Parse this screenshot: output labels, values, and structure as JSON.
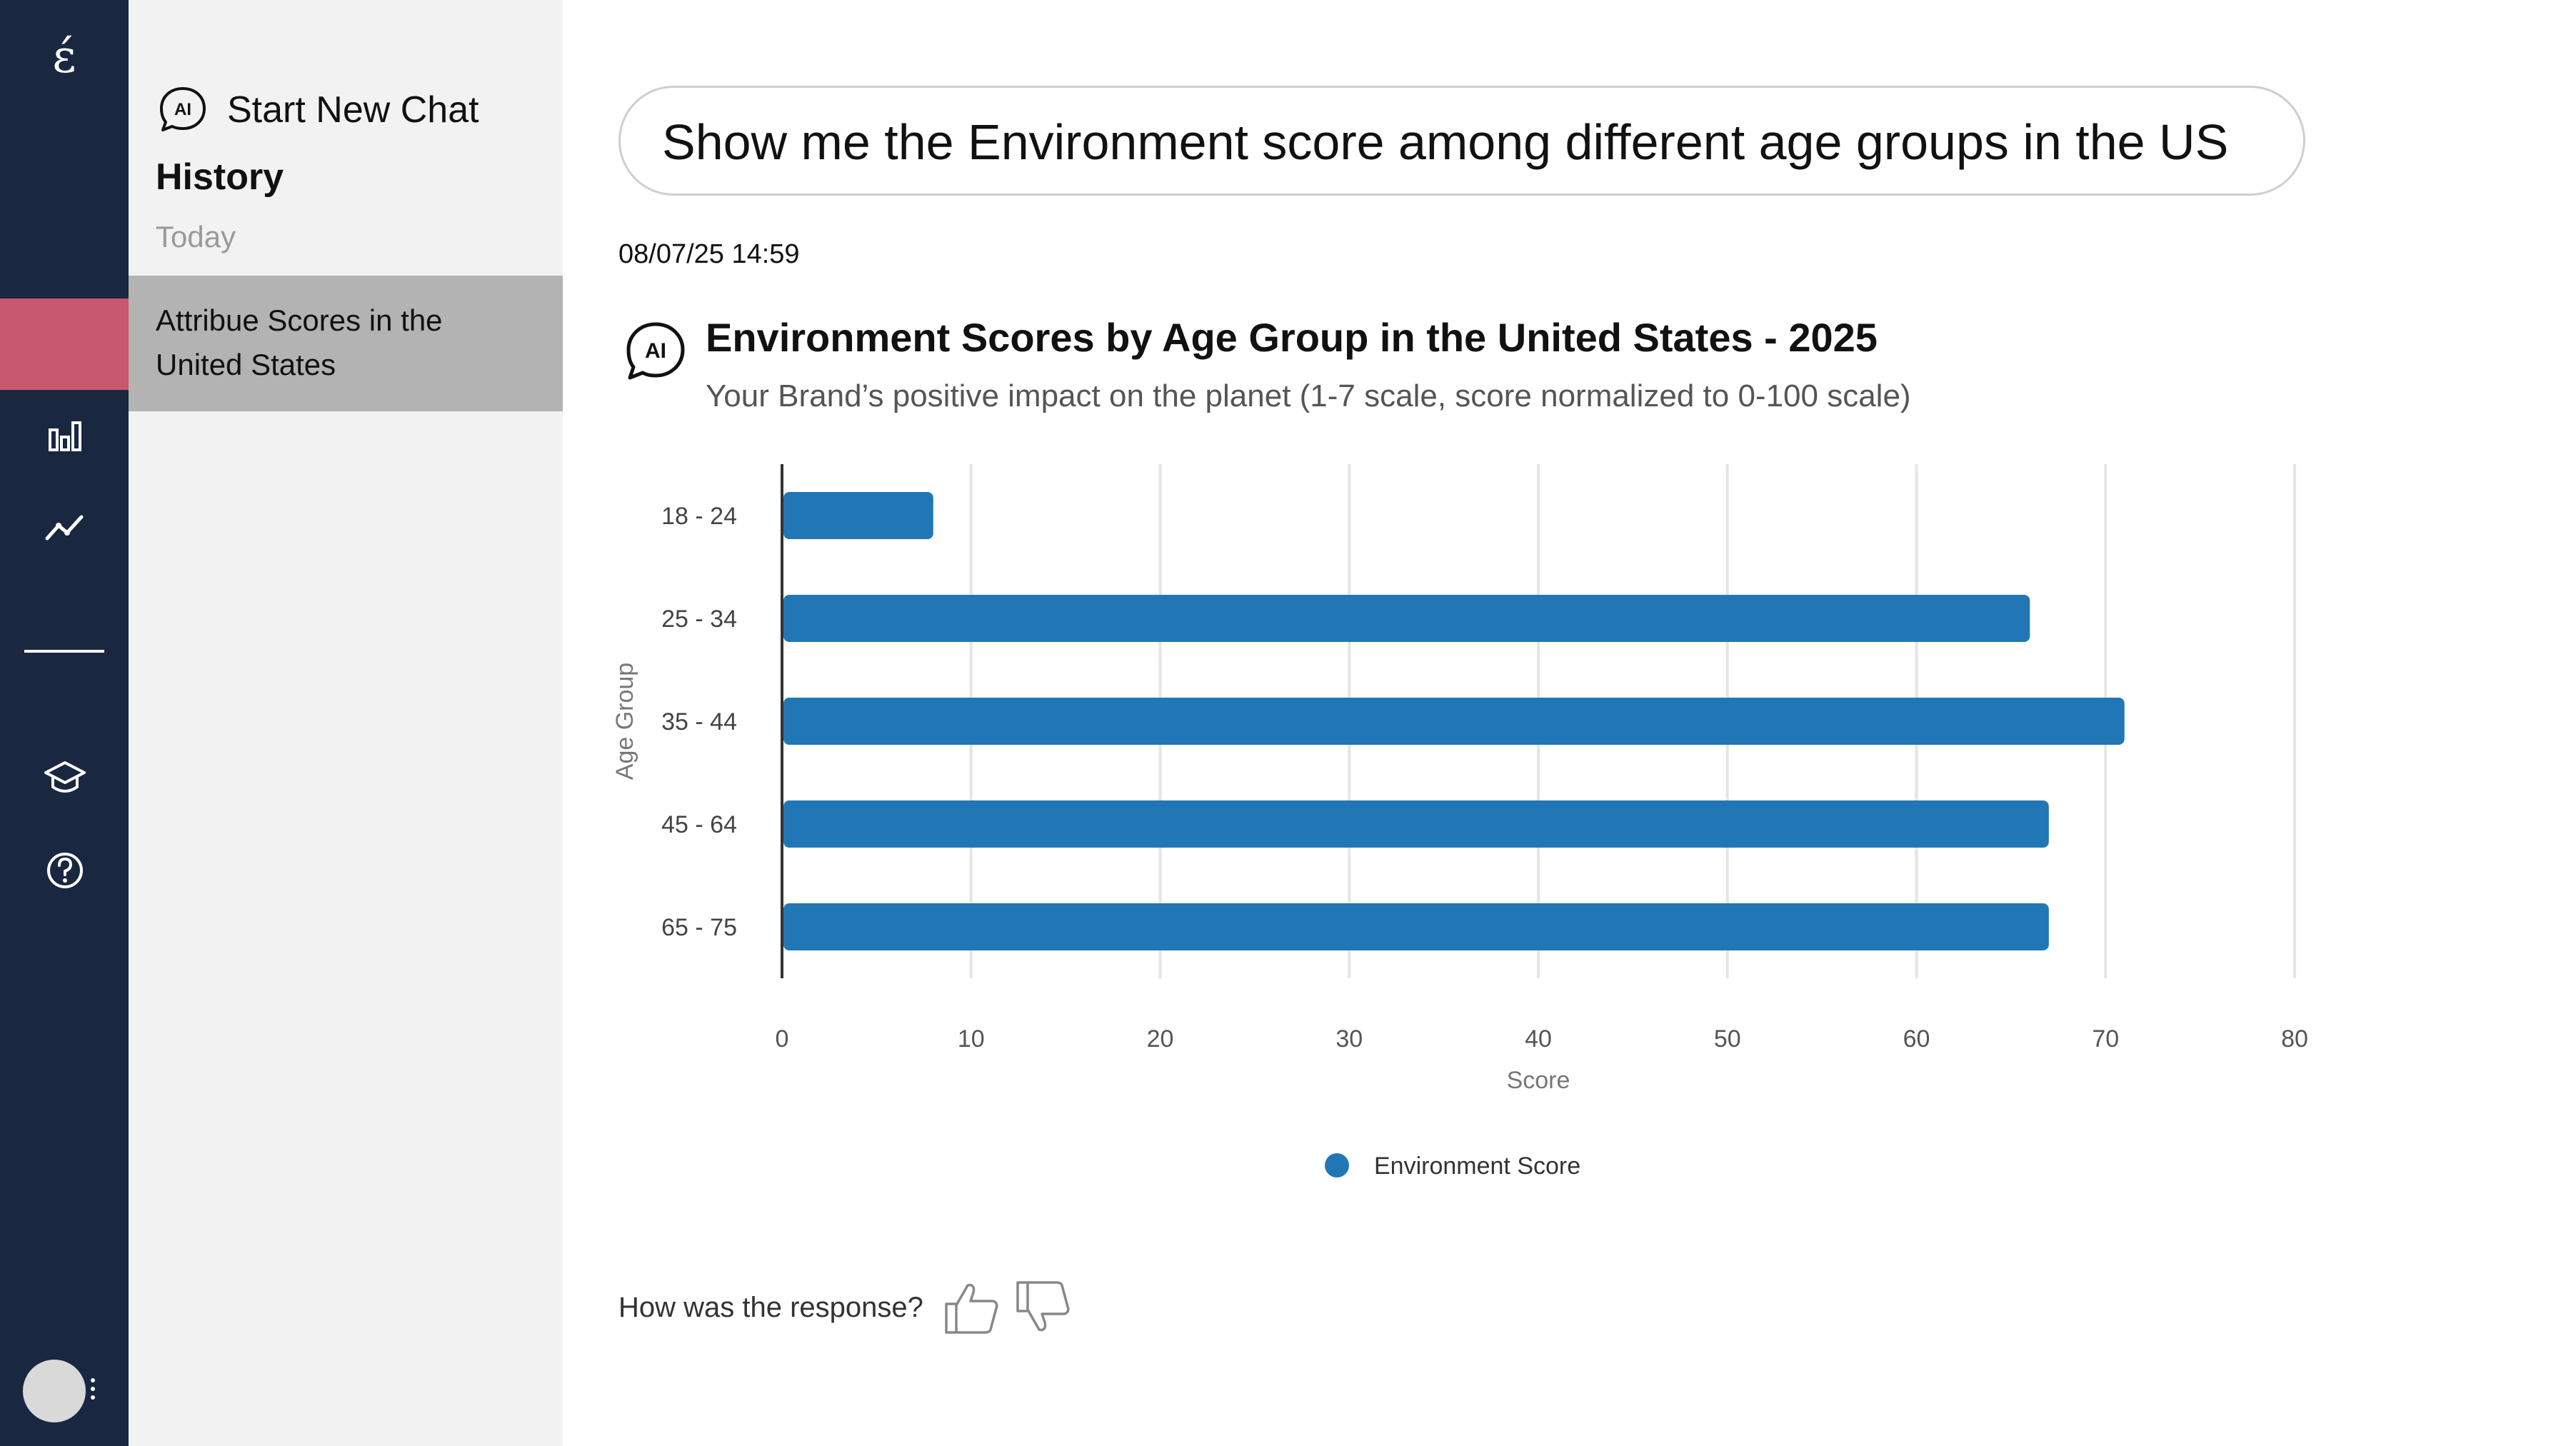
{
  "nav": {
    "logo_text": "ɛ́",
    "icons": [
      "bar-chart-icon",
      "trend-line-icon",
      "graduation-cap-icon",
      "help-icon"
    ]
  },
  "history": {
    "new_chat_label": "Start New Chat",
    "ai_badge": "AI",
    "title": "History",
    "section_label": "Today",
    "items": [
      {
        "label": "Attribue Scores in the United States"
      }
    ]
  },
  "main": {
    "query": "Show me the Environment score among different age groups in the US",
    "timestamp": "08/07/25 14:59",
    "ai_badge": "AI",
    "feedback_prompt": "How was the response?"
  },
  "chart_data": {
    "type": "bar",
    "orientation": "horizontal",
    "title": "Environment Scores by Age Group in the United States - 2025",
    "subtitle": "Your Brand’s positive impact on the planet (1-7 scale, score normalized to 0-100 scale)",
    "categories": [
      "18 - 24",
      "25 - 34",
      "35 - 44",
      "45 - 64",
      "65 - 75"
    ],
    "series": [
      {
        "name": "Environment Score",
        "values": [
          8,
          66,
          71,
          67,
          67
        ]
      }
    ],
    "xlabel": "Score",
    "ylabel": "Age Group",
    "xlim": [
      0,
      80
    ],
    "xticks": [
      "0",
      "10",
      "20",
      "30",
      "40",
      "50",
      "60",
      "70",
      "80"
    ],
    "grid": true,
    "legend": "bottom",
    "colors": {
      "bar": "#2177b5",
      "grid": "#e5e5e5",
      "axis": "#333333"
    }
  }
}
